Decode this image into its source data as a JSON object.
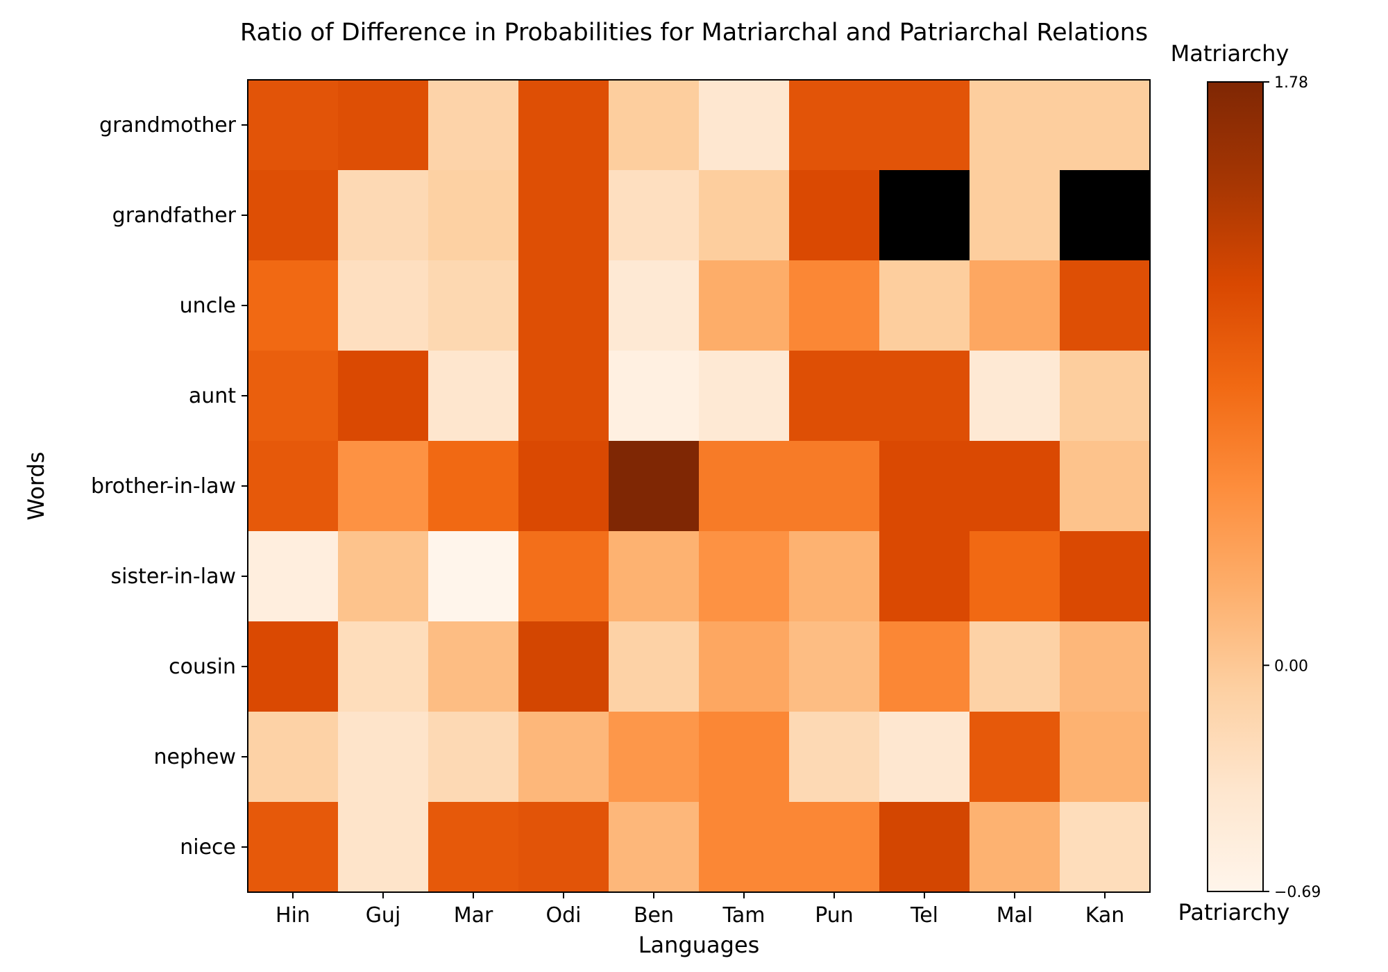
{
  "chart_data": {
    "type": "heatmap",
    "title": "Ratio of Difference in Probabilities for Matriarchal and Patriarchal Relations",
    "xlabel": "Languages",
    "ylabel": "Words",
    "x_categories": [
      "Hin",
      "Guj",
      "Mar",
      "Odi",
      "Ben",
      "Tam",
      "Pun",
      "Tel",
      "Mal",
      "Kan"
    ],
    "y_categories": [
      "grandmother",
      "grandfather",
      "uncle",
      "aunt",
      "brother-in-law",
      "sister-in-law",
      "cousin",
      "nephew",
      "niece"
    ],
    "values": [
      [
        1.05,
        1.1,
        -0.12,
        1.1,
        -0.05,
        -0.4,
        1.05,
        1.05,
        -0.05,
        -0.05
      ],
      [
        1.1,
        -0.2,
        -0.08,
        1.1,
        -0.28,
        -0.05,
        1.15,
        null,
        -0.05,
        null
      ],
      [
        0.85,
        -0.28,
        -0.18,
        1.1,
        -0.45,
        0.25,
        0.6,
        -0.05,
        0.3,
        1.1
      ],
      [
        0.95,
        1.15,
        -0.38,
        1.1,
        -0.58,
        -0.45,
        1.1,
        1.1,
        -0.45,
        -0.05
      ],
      [
        1.0,
        0.5,
        0.85,
        1.15,
        1.78,
        0.7,
        0.7,
        1.15,
        1.15,
        0.05
      ],
      [
        -0.55,
        0.05,
        -0.69,
        0.8,
        0.2,
        0.5,
        0.2,
        1.15,
        0.85,
        1.15
      ],
      [
        1.15,
        -0.25,
        0.1,
        1.2,
        -0.1,
        0.3,
        0.1,
        0.6,
        -0.1,
        0.15
      ],
      [
        -0.1,
        -0.35,
        -0.2,
        0.15,
        0.45,
        0.6,
        -0.2,
        -0.4,
        1.0,
        0.2
      ],
      [
        1.0,
        -0.35,
        1.0,
        1.05,
        0.15,
        0.6,
        0.6,
        1.2,
        0.2,
        -0.25
      ]
    ],
    "missing_color": "#000000",
    "vmin": -0.69,
    "vmax": 1.78,
    "colormap": "Oranges",
    "colorbar": {
      "ticks": [
        1.78,
        0.0,
        -0.69
      ],
      "tick_labels": [
        "1.78",
        "0.00",
        "−0.69"
      ],
      "top_label": "Matriarchy",
      "bottom_label": "Patriarchy"
    },
    "grid": false
  }
}
